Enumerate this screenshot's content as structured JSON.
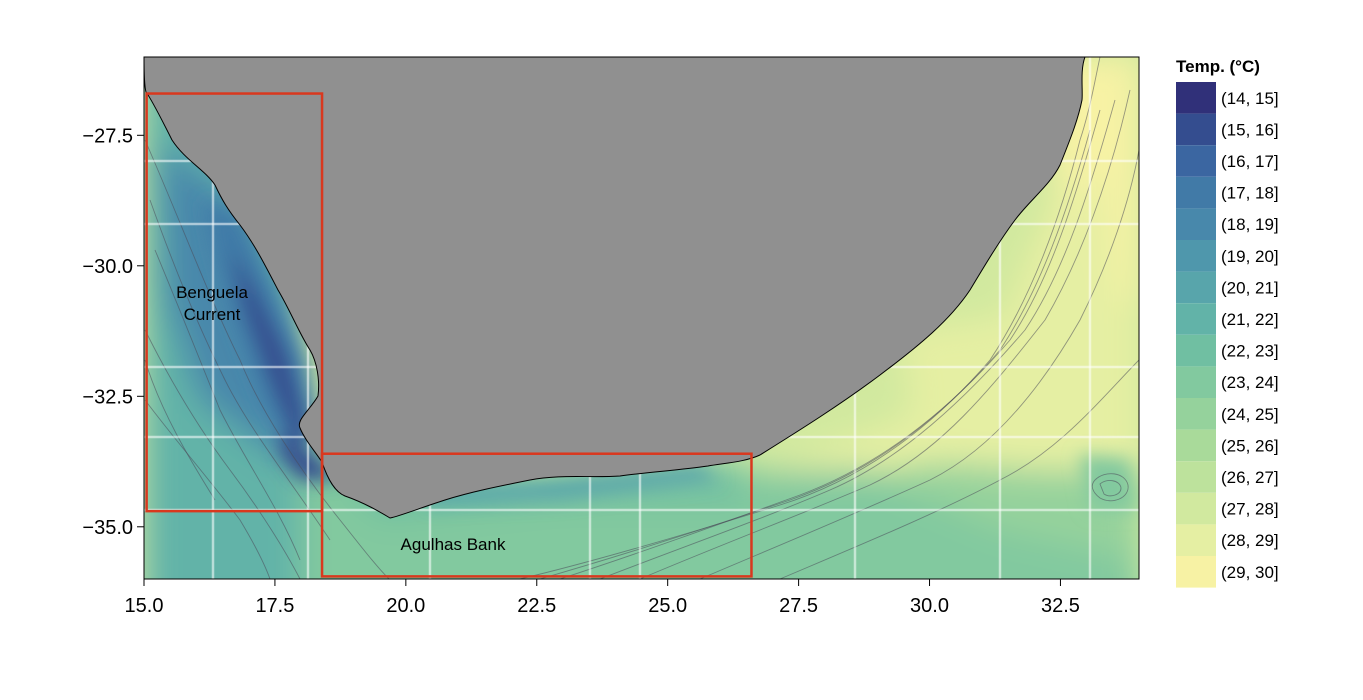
{
  "map": {
    "longitude_range": [
      15.0,
      34.0
    ],
    "latitude_range": [
      -36.0,
      -26.0
    ],
    "x_ticks": [
      "15.0",
      "17.5",
      "20.0",
      "22.5",
      "25.0",
      "27.5",
      "30.0",
      "32.5"
    ],
    "x_tick_values": [
      15.0,
      17.5,
      20.0,
      22.5,
      25.0,
      27.5,
      30.0,
      32.5
    ],
    "y_ticks": [
      "−27.5",
      "−30.0",
      "−32.5",
      "−35.0"
    ],
    "y_tick_values": [
      -27.5,
      -30.0,
      -32.5,
      -35.0
    ],
    "land_color": "#909090",
    "box_color": "#d9381e",
    "regions": [
      {
        "label_lines": [
          "Benguela",
          "Current"
        ],
        "lon_range": [
          15.05,
          18.4
        ],
        "lat_range": [
          -34.7,
          -26.7
        ]
      },
      {
        "label_lines": [
          "Agulhas Bank"
        ],
        "lon_range": [
          18.4,
          26.6
        ],
        "lat_range": [
          -35.95,
          -33.6
        ]
      }
    ]
  },
  "legend": {
    "title": "Temp. (°C)",
    "items": [
      {
        "label": "(14, 15]",
        "color": "#303079"
      },
      {
        "label": "(15, 16]",
        "color": "#344d8f"
      },
      {
        "label": "(16, 17]",
        "color": "#3b66a1"
      },
      {
        "label": "(17, 18]",
        "color": "#417aa7"
      },
      {
        "label": "(18, 19]",
        "color": "#4888ab"
      },
      {
        "label": "(19, 20]",
        "color": "#4f97ac"
      },
      {
        "label": "(20, 21]",
        "color": "#58a5ab"
      },
      {
        "label": "(21, 22]",
        "color": "#62b3a8"
      },
      {
        "label": "(22, 23]",
        "color": "#70bfa2"
      },
      {
        "label": "(23, 24]",
        "color": "#82c99f"
      },
      {
        "label": "(24, 25]",
        "color": "#95d29c"
      },
      {
        "label": "(25, 26]",
        "color": "#a9da9a"
      },
      {
        "label": "(26, 27]",
        "color": "#bde29c"
      },
      {
        "label": "(27, 28]",
        "color": "#d1e99f"
      },
      {
        "label": "(28, 29]",
        "color": "#e5efa3"
      },
      {
        "label": "(29, 30]",
        "color": "#f7f2a4"
      }
    ]
  }
}
